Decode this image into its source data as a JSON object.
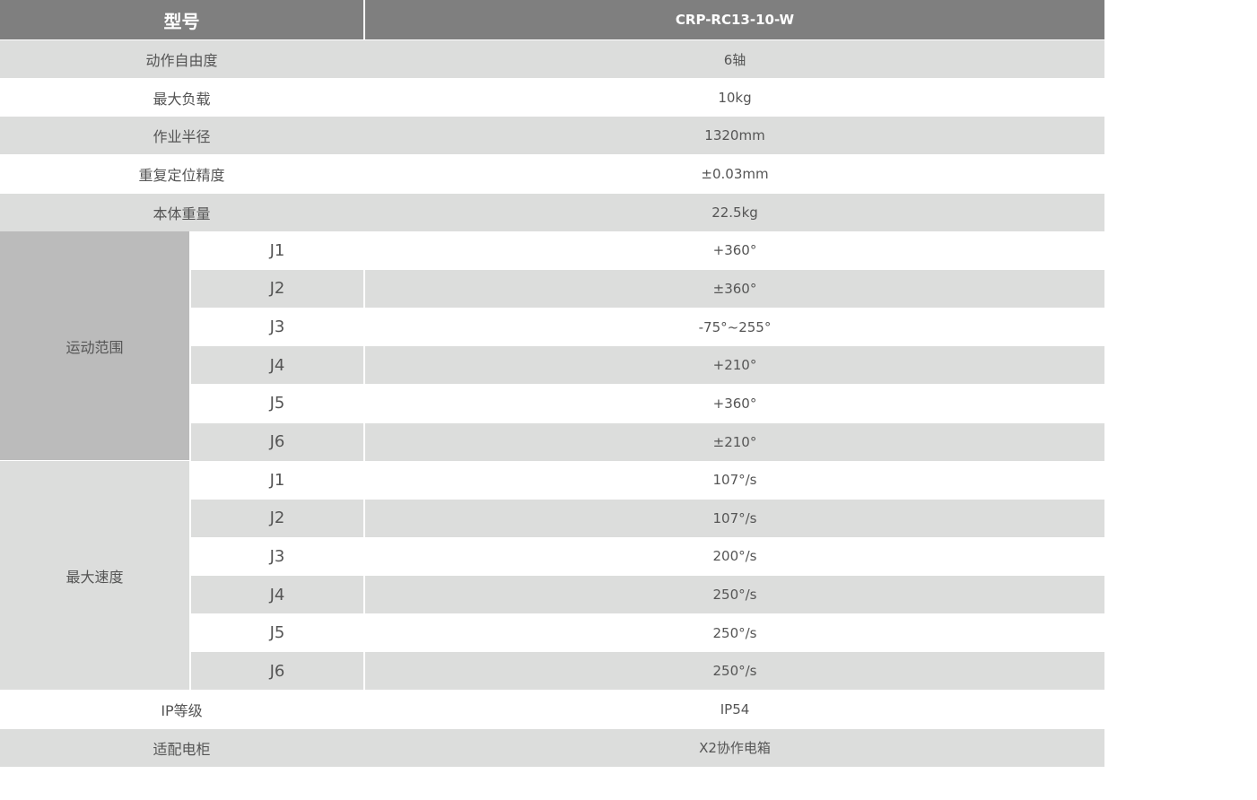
{
  "header": {
    "label": "型号",
    "model": "CRP-RC13-10-W"
  },
  "rows_top": [
    {
      "label": "动作自由度",
      "value": "6轴"
    },
    {
      "label": "最大负载",
      "value": "10kg"
    },
    {
      "label": "作业半径",
      "value": "1320mm"
    },
    {
      "label": "重复定位精度",
      "value": "±0.03mm"
    },
    {
      "label": "本体重量",
      "value": "22.5kg"
    }
  ],
  "motion_range": {
    "label": "运动范围",
    "joints": [
      {
        "joint": "J1",
        "value": "+360°"
      },
      {
        "joint": "J2",
        "value": "±360°"
      },
      {
        "joint": "J3",
        "value": "-75°~255°"
      },
      {
        "joint": "J4",
        "value": "+210°"
      },
      {
        "joint": "J5",
        "value": "+360°"
      },
      {
        "joint": "J6",
        "value": "±210°"
      }
    ]
  },
  "max_speed": {
    "label": "最大速度",
    "joints": [
      {
        "joint": "J1",
        "value": "107°/s"
      },
      {
        "joint": "J2",
        "value": "107°/s"
      },
      {
        "joint": "J3",
        "value": "200°/s"
      },
      {
        "joint": "J4",
        "value": "250°/s"
      },
      {
        "joint": "J5",
        "value": "250°/s"
      },
      {
        "joint": "J6",
        "value": "250°/s"
      }
    ]
  },
  "rows_bottom": [
    {
      "label": "IP等级",
      "value": "IP54"
    },
    {
      "label": "适配电柜",
      "value": "X2协作电箱"
    }
  ]
}
